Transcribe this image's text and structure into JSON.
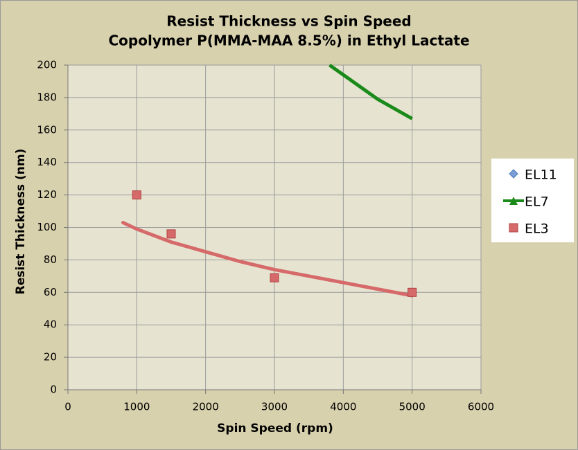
{
  "chart_data": {
    "type": "line",
    "title": "Resist Thickness vs Spin Speed",
    "subtitle": "Copolymer P(MMA-MAA 8.5%) in Ethyl Lactate",
    "x_label": "Spin Speed (rpm)",
    "y_label": "Resist Thickness (nm)",
    "xlim": [
      0,
      6000
    ],
    "xticks": [
      0,
      1000,
      2000,
      3000,
      4000,
      5000,
      6000
    ],
    "ylim": [
      0,
      200
    ],
    "yticks": [
      0,
      20,
      40,
      60,
      80,
      100,
      120,
      140,
      160,
      180,
      200
    ],
    "grid": true,
    "legend": "right",
    "series": [
      {
        "name": "EL11",
        "color": "#7a9fd8",
        "marker": "diamond",
        "line": false,
        "x": [],
        "values": []
      },
      {
        "name": "EL7",
        "color": "#1a8a1a",
        "marker": "triangle",
        "line": true,
        "x": [
          3800,
          4000,
          4500,
          5000
        ],
        "values": [
          200,
          194,
          179,
          167
        ]
      },
      {
        "name": "EL3",
        "color": "#d66a6a",
        "marker": "square",
        "line": false,
        "x": [
          1000,
          1500,
          3000,
          5000
        ],
        "values": [
          120,
          96,
          69,
          60
        ],
        "trend": {
          "x": [
            800,
            1000,
            1500,
            2000,
            2500,
            3000,
            3500,
            4000,
            4500,
            5000
          ],
          "values": [
            103,
            99,
            91,
            85,
            79,
            74,
            70,
            66,
            62,
            58
          ]
        }
      }
    ]
  }
}
